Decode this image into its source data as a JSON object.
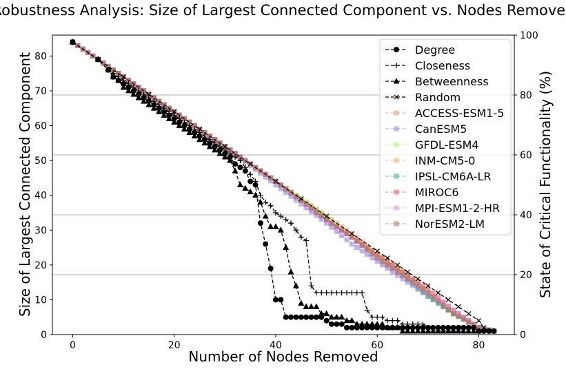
{
  "chart_data": {
    "type": "line",
    "title": "Robustness Analysis: Size of Largest Connected Component vs. Nodes Removed",
    "xlabel": "Number of Nodes Removed",
    "ylabel": "Size of Largest Connected Component",
    "y2label": "State of Critical Functionality (%)",
    "xlim": [
      -4,
      87
    ],
    "ylim": [
      0,
      86
    ],
    "y2lim": [
      0,
      100
    ],
    "xticks": [
      0,
      20,
      40,
      60,
      80
    ],
    "yticks": [
      0,
      10,
      20,
      30,
      40,
      50,
      60,
      70,
      80
    ],
    "y2ticks": [
      0,
      20,
      40,
      60,
      80,
      100
    ],
    "hlines_pct": [
      20,
      40,
      60,
      80
    ],
    "legend_position": "upper right",
    "series": [
      {
        "name": "Degree",
        "color": "#000000",
        "marker": "o",
        "linestyle": "dashed",
        "x": [
          0,
          5,
          7,
          8,
          9,
          10,
          11,
          12,
          13,
          14,
          15,
          16,
          17,
          18,
          19,
          20,
          21,
          22,
          23,
          24,
          25,
          26,
          27,
          28,
          29,
          30,
          31,
          32,
          33,
          34,
          35,
          36,
          37,
          38,
          39,
          40,
          41,
          42,
          43,
          44,
          45,
          46,
          47,
          48,
          49,
          50,
          51,
          52,
          53,
          54,
          55,
          56,
          57,
          58,
          59,
          60,
          61,
          62,
          63,
          64,
          65,
          66,
          67,
          68,
          69,
          70,
          71,
          72,
          73,
          74,
          75,
          76,
          77,
          78,
          79,
          80,
          81,
          82,
          83
        ],
        "y": [
          84,
          79,
          76,
          74,
          73,
          72,
          71,
          70,
          69,
          68,
          67,
          66,
          65,
          64,
          63,
          62,
          61,
          60,
          59,
          58,
          57,
          56,
          55,
          54,
          53,
          52,
          51,
          49,
          48,
          47,
          44,
          43,
          32,
          26,
          19,
          10,
          10,
          5,
          5,
          5,
          5,
          5,
          5,
          5,
          5,
          4,
          3,
          3,
          3,
          2,
          2,
          2,
          2,
          2,
          2,
          2,
          2,
          2,
          2,
          2,
          2,
          2,
          2,
          2,
          2,
          2,
          2,
          2,
          2,
          2,
          2,
          2,
          2,
          2,
          2,
          1,
          1,
          1,
          1
        ]
      },
      {
        "name": "Closeness",
        "color": "#000000",
        "marker": "+",
        "linestyle": "dashed",
        "x": [
          0,
          5,
          7,
          8,
          9,
          10,
          11,
          12,
          13,
          14,
          15,
          16,
          17,
          18,
          19,
          20,
          21,
          22,
          23,
          24,
          25,
          26,
          27,
          28,
          29,
          30,
          31,
          32,
          33,
          34,
          35,
          36,
          37,
          38,
          39,
          40,
          41,
          42,
          43,
          44,
          45,
          46,
          47,
          48,
          49,
          50,
          51,
          52,
          53,
          54,
          55,
          56,
          57,
          58,
          59,
          60,
          61,
          62,
          63,
          64,
          65,
          66,
          67,
          68,
          69,
          70,
          71,
          72,
          73,
          74,
          75,
          76,
          77,
          78
        ],
        "y": [
          84,
          79,
          76,
          75,
          74,
          73,
          72,
          71,
          70,
          69,
          68,
          67,
          66,
          65,
          64,
          63,
          62,
          61,
          60,
          59,
          58,
          57,
          56,
          55,
          54,
          53,
          52,
          51,
          50,
          48,
          46,
          44,
          40,
          38,
          37,
          35,
          34,
          33,
          32,
          30,
          28,
          27,
          14,
          12,
          12,
          12,
          12,
          12,
          12,
          12,
          12,
          12,
          12,
          7,
          5,
          5,
          5,
          4,
          4,
          4,
          3,
          3,
          3,
          3,
          3,
          2,
          2,
          2,
          2,
          2,
          2,
          2,
          2,
          2
        ]
      },
      {
        "name": "Betweenness",
        "color": "#000000",
        "marker": "^",
        "linestyle": "dashed",
        "x": [
          0,
          5,
          7,
          8,
          9,
          10,
          11,
          12,
          13,
          14,
          15,
          16,
          17,
          18,
          19,
          20,
          21,
          22,
          23,
          24,
          25,
          26,
          27,
          28,
          29,
          30,
          31,
          32,
          33,
          34,
          35,
          36,
          37,
          38,
          39,
          40,
          41,
          42,
          43,
          44,
          45,
          46,
          47,
          48,
          49,
          50,
          51,
          52,
          53,
          54,
          55,
          56,
          57,
          58,
          59,
          60,
          61,
          62,
          63,
          64,
          65,
          66,
          67,
          68,
          69,
          70,
          71,
          72,
          73,
          74,
          75,
          76,
          77,
          78,
          79,
          80
        ],
        "y": [
          84,
          79,
          76,
          74,
          73,
          71,
          70,
          69,
          68,
          67,
          66,
          65,
          64,
          63,
          62,
          61,
          60,
          59,
          58,
          57,
          56,
          55,
          54,
          53,
          52,
          51,
          50,
          47,
          43,
          42,
          41,
          40,
          38,
          34,
          31,
          31,
          30,
          25,
          18,
          14,
          9,
          8,
          8,
          8,
          6,
          6,
          5,
          5,
          5,
          4,
          4,
          3,
          3,
          3,
          3,
          3,
          3,
          2,
          2,
          2,
          1,
          1,
          1,
          1,
          1,
          1,
          1,
          1,
          1,
          1,
          1,
          1,
          1,
          1,
          1,
          1
        ]
      },
      {
        "name": "Random",
        "color": "#000000",
        "marker": "x",
        "linestyle": "dashed",
        "x": [
          0,
          5,
          10,
          15,
          20,
          25,
          30,
          35,
          40,
          45,
          50,
          55,
          60,
          62,
          64,
          66,
          68,
          70,
          72,
          74,
          76,
          78,
          80,
          81,
          82
        ],
        "y": [
          84,
          79,
          74,
          69,
          64,
          59,
          54,
          49,
          44,
          39,
          34,
          29,
          24,
          22,
          20,
          18,
          16,
          14,
          12,
          10,
          8,
          6,
          4,
          2,
          1
        ]
      },
      {
        "name": "ACCESS-ESM1-5",
        "color": "#ff8a65",
        "marker": "s",
        "linestyle": "dashed",
        "x": [
          0,
          10,
          20,
          30,
          40,
          50,
          55,
          60,
          65,
          70,
          75,
          80,
          83
        ],
        "y": [
          84,
          74,
          64,
          54,
          44,
          34,
          29,
          23,
          18,
          12,
          7,
          2,
          1
        ]
      },
      {
        "name": "CanESM5",
        "color": "#8d7fe6",
        "marker": "s",
        "linestyle": "dashed",
        "x": [
          0,
          10,
          20,
          30,
          40,
          50,
          55,
          60,
          65,
          70,
          75,
          80,
          83
        ],
        "y": [
          84,
          74,
          64,
          54,
          43,
          32,
          26,
          21,
          16,
          11,
          6,
          2,
          1
        ]
      },
      {
        "name": "GFDL-ESM4",
        "color": "#99ff4d",
        "marker": "s",
        "linestyle": "dashed",
        "x": [
          0,
          10,
          20,
          30,
          40,
          43,
          50,
          55,
          60,
          65,
          70,
          75,
          80,
          83
        ],
        "y": [
          84,
          74,
          64,
          54,
          44,
          41,
          34,
          28,
          23,
          18,
          12,
          6,
          2,
          1
        ]
      },
      {
        "name": "INM-CM5-0",
        "color": "#e6b055",
        "marker": "s",
        "linestyle": "dashed",
        "x": [
          0,
          10,
          20,
          30,
          40,
          50,
          55,
          60,
          65,
          70,
          75,
          80,
          83
        ],
        "y": [
          84,
          74,
          64,
          54,
          44,
          33,
          28,
          23,
          18,
          12,
          6,
          2,
          1
        ]
      },
      {
        "name": "IPSL-CM6A-LR",
        "color": "#3aa8a0",
        "marker": "s",
        "linestyle": "dashed",
        "x": [
          0,
          10,
          20,
          30,
          40,
          50,
          55,
          60,
          65,
          70,
          75,
          80,
          83
        ],
        "y": [
          84,
          74,
          64,
          54,
          44,
          33,
          28,
          22,
          17,
          11,
          6,
          2,
          1
        ]
      },
      {
        "name": "MIROC6",
        "color": "#e6506e",
        "marker": "s",
        "linestyle": "dashed",
        "x": [
          0,
          10,
          20,
          30,
          40,
          50,
          55,
          60,
          65,
          70,
          75,
          80,
          83
        ],
        "y": [
          84,
          74,
          64,
          54,
          44,
          33,
          28,
          23,
          18,
          13,
          7,
          2,
          1
        ]
      },
      {
        "name": "MPI-ESM1-2-HR",
        "color": "#dd8fe6",
        "marker": "s",
        "linestyle": "dashed",
        "x": [
          0,
          10,
          20,
          30,
          40,
          50,
          55,
          60,
          65,
          70,
          75,
          80,
          83
        ],
        "y": [
          84,
          74,
          64,
          54,
          44,
          33,
          28,
          22,
          17,
          12,
          7,
          2,
          1
        ]
      },
      {
        "name": "NorESM2-LM",
        "color": "#b07050",
        "marker": "s",
        "linestyle": "dashed",
        "x": [
          0,
          10,
          20,
          30,
          40,
          50,
          55,
          60,
          65,
          70,
          75,
          80,
          83
        ],
        "y": [
          84,
          74,
          64,
          54,
          44,
          33,
          28,
          22,
          17,
          12,
          6,
          2,
          1
        ]
      }
    ]
  }
}
